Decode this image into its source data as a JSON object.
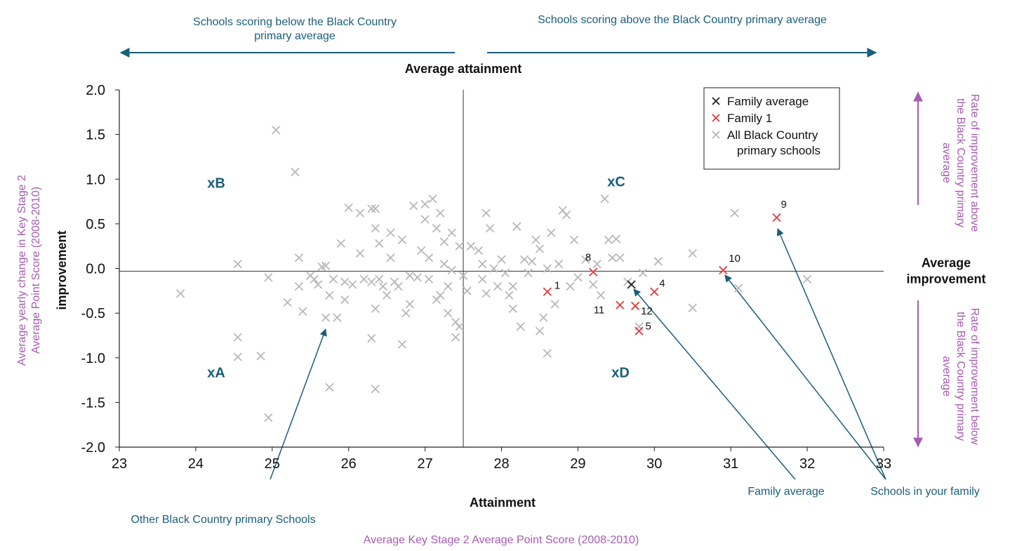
{
  "chart_data": {
    "type": "scatter",
    "x_label": "Attainment",
    "x_subtitle": "Average Key Stage 2 Average Point Score (2008-2010)",
    "y_label": "improvement",
    "y_subtitle": "Average yearly change in Key Stage 2 Average Point Score (2008-2010)",
    "xlim": [
      23,
      33
    ],
    "xticks": [
      23,
      24,
      25,
      26,
      27,
      28,
      29,
      30,
      31,
      32,
      33
    ],
    "ylim": [
      -2,
      2
    ],
    "yticks": [
      {
        "value": 2,
        "label": "2.0"
      },
      {
        "value": 1.5,
        "label": "1.5"
      },
      {
        "value": 1,
        "label": "1.0"
      },
      {
        "value": 0.5,
        "label": "0.5"
      },
      {
        "value": 0,
        "label": "0.0"
      },
      {
        "value": -0.5,
        "label": "-0.5"
      },
      {
        "value": -1,
        "label": "-1.0"
      },
      {
        "value": -1.5,
        "label": "-1.5"
      },
      {
        "value": -2,
        "label": "-2.0"
      }
    ],
    "reference_lines": {
      "x": 27.5,
      "y": -0.03,
      "x_label": "Average attainment",
      "y_label": "Average improvement"
    },
    "legend": "upper right",
    "annotations": {
      "top_left": "Schools scoring below the Black Country primary average",
      "top_right": "Schools scoring above the Black Country primary average",
      "right_top": "Rate of improvement above the Black Country primary average",
      "right_bottom": "Rate of improvement below the Black Country primary average",
      "other_schools": "Other Black Country primary Schools",
      "family_average": "Family average",
      "your_family": "Schools in your family",
      "quadrants": [
        "xA",
        "xB",
        "xC",
        "xD"
      ]
    },
    "series": [
      {
        "name": "Family average",
        "color": "#222222",
        "x": [
          29.7
        ],
        "values": [
          -0.18
        ]
      },
      {
        "name": "Family 1",
        "color": "#e0393e",
        "x": [
          28.6,
          29.2,
          29.55,
          29.75,
          30.0,
          29.8,
          30.9,
          31.6
        ],
        "values": [
          -0.26,
          -0.04,
          -0.41,
          -0.42,
          -0.26,
          -0.7,
          -0.02,
          0.57
        ],
        "labels": [
          "1",
          "8",
          "11",
          "12",
          "4",
          "5",
          "10",
          "9"
        ]
      },
      {
        "name": "All Black Country primary schools",
        "color": "#b8b8b8",
        "x": [
          23.8,
          24.55,
          24.55,
          24.55,
          24.85,
          24.95,
          24.95,
          25.05,
          25.2,
          25.3,
          25.35,
          25.35,
          25.4,
          25.5,
          25.55,
          25.6,
          25.65,
          25.7,
          25.7,
          25.75,
          25.75,
          25.8,
          25.85,
          25.9,
          25.95,
          25.95,
          26.0,
          26.05,
          26.15,
          26.15,
          26.2,
          26.3,
          26.3,
          26.3,
          26.35,
          26.35,
          26.35,
          26.35,
          26.4,
          26.4,
          26.45,
          26.5,
          26.55,
          26.55,
          26.6,
          26.65,
          26.7,
          26.7,
          26.75,
          26.8,
          26.8,
          26.85,
          26.9,
          26.95,
          27.0,
          27.0,
          27.05,
          27.05,
          27.1,
          27.15,
          27.15,
          27.2,
          27.2,
          27.25,
          27.25,
          27.3,
          27.3,
          27.35,
          27.35,
          27.4,
          27.4,
          27.45,
          27.45,
          27.5,
          27.55,
          27.6,
          27.7,
          27.75,
          27.75,
          27.8,
          27.8,
          27.85,
          27.9,
          27.95,
          28.0,
          28.05,
          28.1,
          28.15,
          28.15,
          28.2,
          28.25,
          28.3,
          28.35,
          28.4,
          28.45,
          28.5,
          28.5,
          28.55,
          28.6,
          28.6,
          28.65,
          28.7,
          28.75,
          28.8,
          28.85,
          28.9,
          28.95,
          29.0,
          29.1,
          29.2,
          29.25,
          29.3,
          29.35,
          29.4,
          29.45,
          29.5,
          29.55,
          29.65,
          29.8,
          29.85,
          30.05,
          30.5,
          30.5,
          31.05,
          31.1,
          32.0
        ],
        "values": [
          -0.28,
          0.05,
          -0.77,
          -0.99,
          -0.98,
          -0.1,
          -1.67,
          1.55,
          -0.38,
          1.08,
          0.12,
          -0.2,
          -0.48,
          -0.08,
          -0.12,
          -0.18,
          0.02,
          0.03,
          -0.55,
          -0.3,
          -1.33,
          -0.12,
          -0.55,
          0.28,
          -0.35,
          -0.15,
          0.68,
          -0.18,
          0.17,
          0.62,
          -0.12,
          -0.15,
          -0.78,
          0.67,
          0.45,
          0.67,
          -0.45,
          -1.35,
          0.28,
          -0.12,
          -0.2,
          -0.3,
          0.12,
          0.4,
          -0.15,
          -0.2,
          0.32,
          -0.85,
          -0.5,
          -0.4,
          -0.08,
          0.7,
          -0.1,
          0.2,
          0.72,
          0.55,
          0.12,
          -0.12,
          0.78,
          -0.35,
          0.45,
          0.62,
          -0.3,
          0.3,
          0.05,
          -0.5,
          -0.2,
          0.4,
          -0.02,
          -0.6,
          -0.77,
          -0.65,
          0.25,
          -0.08,
          -0.25,
          0.25,
          0.2,
          -0.12,
          0.05,
          -0.28,
          0.62,
          0.45,
          0.0,
          -0.2,
          0.1,
          -0.05,
          -0.3,
          -0.45,
          -0.2,
          0.47,
          -0.65,
          0.1,
          -0.05,
          0.08,
          0.32,
          -0.7,
          0.22,
          -0.55,
          0.0,
          -0.95,
          0.4,
          -0.4,
          0.05,
          0.65,
          0.6,
          -0.2,
          0.32,
          -0.1,
          0.1,
          -0.18,
          0.05,
          -0.3,
          0.78,
          0.32,
          0.12,
          0.33,
          0.12,
          -0.15,
          -0.65,
          -0.05,
          0.08,
          0.17,
          -0.44,
          0.62,
          -0.22,
          -0.12
        ]
      }
    ]
  }
}
